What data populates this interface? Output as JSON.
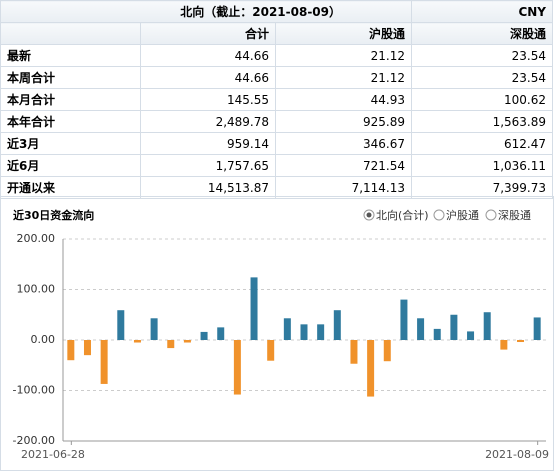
{
  "table": {
    "title": "北向（截止：2021-08-09）",
    "currency": "CNY",
    "columns": [
      "合计",
      "沪股通",
      "深股通"
    ],
    "rows": [
      [
        "最新",
        "44.66",
        "21.12",
        "23.54"
      ],
      [
        "本周合计",
        "44.66",
        "21.12",
        "23.54"
      ],
      [
        "本月合计",
        "145.55",
        "44.93",
        "100.62"
      ],
      [
        "本年合计",
        "2,489.78",
        "925.89",
        "1,563.89"
      ],
      [
        "近3月",
        "959.14",
        "346.67",
        "612.47"
      ],
      [
        "近6月",
        "1,757.65",
        "721.54",
        "1,036.11"
      ],
      [
        "开通以来",
        "14,513.87",
        "7,114.13",
        "7,399.73"
      ]
    ]
  },
  "chart_data": {
    "type": "bar",
    "title": "近30日资金流向",
    "options": [
      "北向(合计)",
      "沪股通",
      "深股通"
    ],
    "selected": 0,
    "categories": [
      "2021-06-28",
      null,
      null,
      null,
      null,
      null,
      null,
      null,
      null,
      null,
      null,
      null,
      null,
      null,
      null,
      null,
      null,
      null,
      null,
      null,
      null,
      null,
      null,
      null,
      null,
      null,
      null,
      null,
      "2021-08-09"
    ],
    "values": [
      -40,
      -30,
      -87,
      59,
      -5,
      43,
      -16,
      -5,
      16,
      25,
      -108,
      124,
      -41,
      43,
      31,
      31,
      59,
      -47,
      -112,
      -42,
      80,
      43,
      22,
      50,
      17,
      55,
      -19,
      -4,
      44.66
    ],
    "positive_color": "#2f7a9e",
    "negative_color": "#f0922b",
    "ylim": [
      -200,
      200
    ],
    "yticks": [
      {
        "value": 200,
        "label": "200.00"
      },
      {
        "value": 100,
        "label": "100.00"
      },
      {
        "value": 0,
        "label": "0.00"
      },
      {
        "value": -100,
        "label": "-100.00"
      },
      {
        "value": -200,
        "label": "-200.00"
      }
    ],
    "grid": true
  }
}
